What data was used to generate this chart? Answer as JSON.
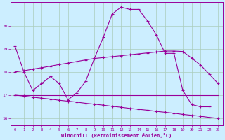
{
  "xlabel": "Windchill (Refroidissement éolien,°C)",
  "bg_color": "#cceeff",
  "line_color": "#990099",
  "grid_color": "#aaccbb",
  "xlim": [
    -0.5,
    23.5
  ],
  "ylim": [
    15.7,
    21.0
  ],
  "xticks": [
    0,
    1,
    2,
    3,
    4,
    5,
    6,
    7,
    8,
    9,
    10,
    11,
    12,
    13,
    14,
    15,
    16,
    17,
    18,
    19,
    20,
    21,
    22,
    23
  ],
  "yticks": [
    16,
    17,
    18,
    19,
    20
  ],
  "curve1_x": [
    0,
    1,
    2,
    3,
    4,
    5,
    6,
    7,
    8,
    9,
    10,
    11,
    12,
    13,
    14,
    15,
    16,
    17,
    18,
    19,
    20,
    21,
    22
  ],
  "curve1_y": [
    19.1,
    18.0,
    17.2,
    17.5,
    17.8,
    17.5,
    16.8,
    17.1,
    17.6,
    18.6,
    19.5,
    20.5,
    20.8,
    20.7,
    20.7,
    20.2,
    19.6,
    18.8,
    18.8,
    17.2,
    16.6,
    16.5,
    16.5
  ],
  "curve2_x": [
    0,
    1,
    2,
    3,
    4,
    5,
    6,
    7,
    8,
    9,
    10,
    11,
    12,
    13,
    14,
    15,
    16,
    17,
    18,
    19,
    20,
    21,
    22,
    23
  ],
  "curve2_y": [
    18.0,
    18.05,
    18.12,
    18.18,
    18.25,
    18.32,
    18.38,
    18.45,
    18.52,
    18.58,
    18.62,
    18.66,
    18.7,
    18.74,
    18.78,
    18.82,
    18.86,
    18.9,
    18.9,
    18.88,
    18.6,
    18.3,
    17.9,
    17.5
  ],
  "curve3_x": [
    0,
    1,
    2,
    3,
    4,
    5,
    6,
    7,
    8,
    9,
    10,
    11,
    12,
    13,
    14,
    15,
    16,
    17,
    18,
    19,
    20,
    21,
    22,
    23
  ],
  "curve3_y": [
    17.0,
    17.0,
    17.0,
    17.0,
    17.0,
    17.0,
    17.0,
    17.0,
    17.0,
    17.0,
    17.0,
    17.0,
    17.0,
    17.0,
    17.0,
    17.0,
    17.0,
    17.0,
    17.0,
    17.0,
    17.0,
    17.0,
    17.0,
    17.0
  ],
  "curve4_x": [
    0,
    1,
    2,
    3,
    4,
    5,
    6,
    7,
    8,
    9,
    10,
    11,
    12,
    13,
    14,
    15,
    16,
    17,
    18,
    19,
    20,
    21,
    22,
    23
  ],
  "curve4_y": [
    17.0,
    16.96,
    16.91,
    16.87,
    16.83,
    16.78,
    16.74,
    16.7,
    16.65,
    16.61,
    16.57,
    16.52,
    16.48,
    16.43,
    16.39,
    16.35,
    16.3,
    16.26,
    16.22,
    16.17,
    16.13,
    16.09,
    16.04,
    16.0
  ]
}
